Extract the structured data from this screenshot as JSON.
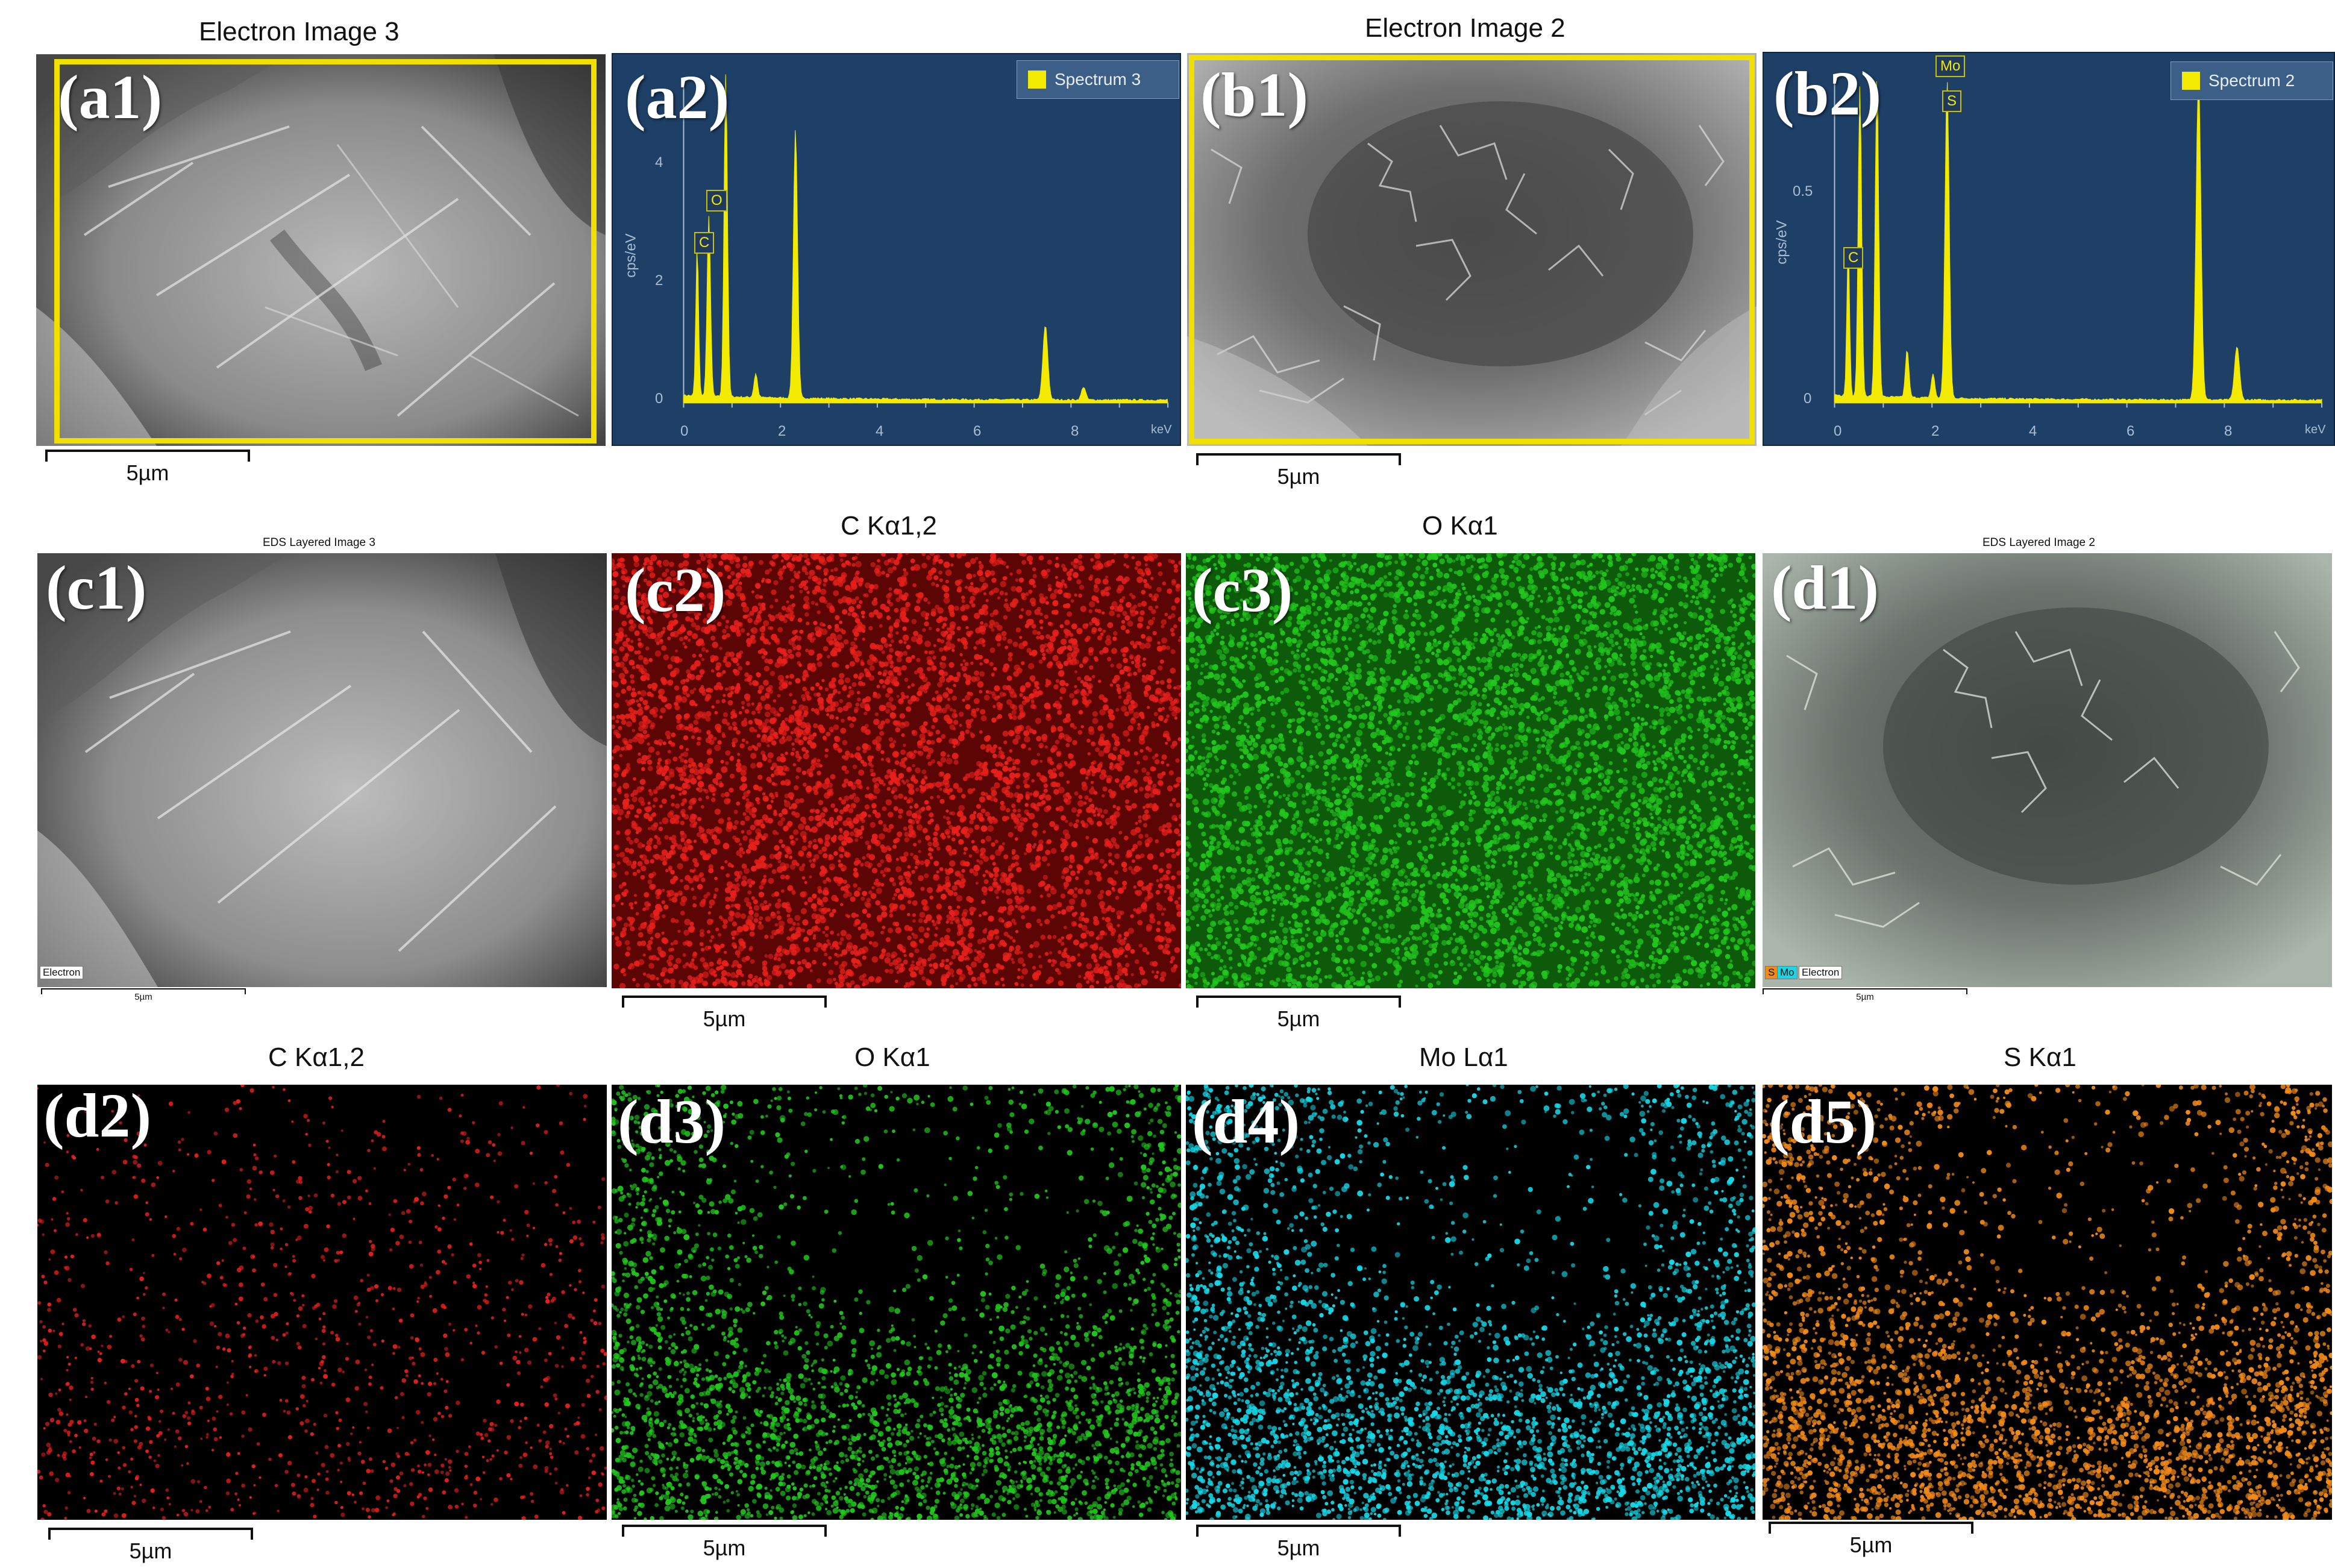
{
  "titles": {
    "a1": "Electron Image 3",
    "b1": "Electron Image 2",
    "c1": "EDS Layered Image 3",
    "c2": "C Kα1,2",
    "c3": "O Kα1",
    "d1": "EDS Layered Image 2",
    "d2": "C Kα1,2",
    "d3": "O Kα1",
    "d4": "Mo Lα1",
    "d5": "S Kα1"
  },
  "panel_labels": {
    "a1": "(a1)",
    "a2": "(a2)",
    "b1": "(b1)",
    "b2": "(b2)",
    "c1": "(c1)",
    "c2": "(c2)",
    "c3": "(c3)",
    "d1": "(d1)",
    "d2": "(d2)",
    "d3": "(d3)",
    "d4": "(d4)",
    "d5": "(d5)"
  },
  "scale_bar_label": "5µm",
  "spectra": {
    "a2": {
      "legend": "Spectrum 3",
      "y_axis_label": "cps/eV",
      "x_axis_unit": "keV",
      "y_ticks": [
        "0",
        "2",
        "4"
      ],
      "x_ticks": [
        "0",
        "2",
        "4",
        "6",
        "8"
      ],
      "peak_tags": [
        "C",
        "O"
      ]
    },
    "b2": {
      "legend": "Spectrum 2",
      "y_axis_label": "cps/eV",
      "x_axis_unit": "keV",
      "y_ticks": [
        "0",
        "0.5"
      ],
      "x_ticks": [
        "0",
        "2",
        "4",
        "6",
        "8"
      ],
      "peak_tags": [
        "C",
        "Mo",
        "S"
      ]
    }
  },
  "overlay_labels": {
    "c1_electron": "Electron",
    "d1_s": "S",
    "d1_mo": "Mo",
    "d1_electron": "Electron"
  },
  "colors": {
    "spectrum_bg": "#1e3f66",
    "spectrum_line": "#f2ea00",
    "selection_box": "#f0e000",
    "carbon_map": "#e8201c",
    "oxygen_map": "#22c51e",
    "molybdenum_map": "#17d6e6",
    "sulfur_map": "#f28a1a"
  }
}
